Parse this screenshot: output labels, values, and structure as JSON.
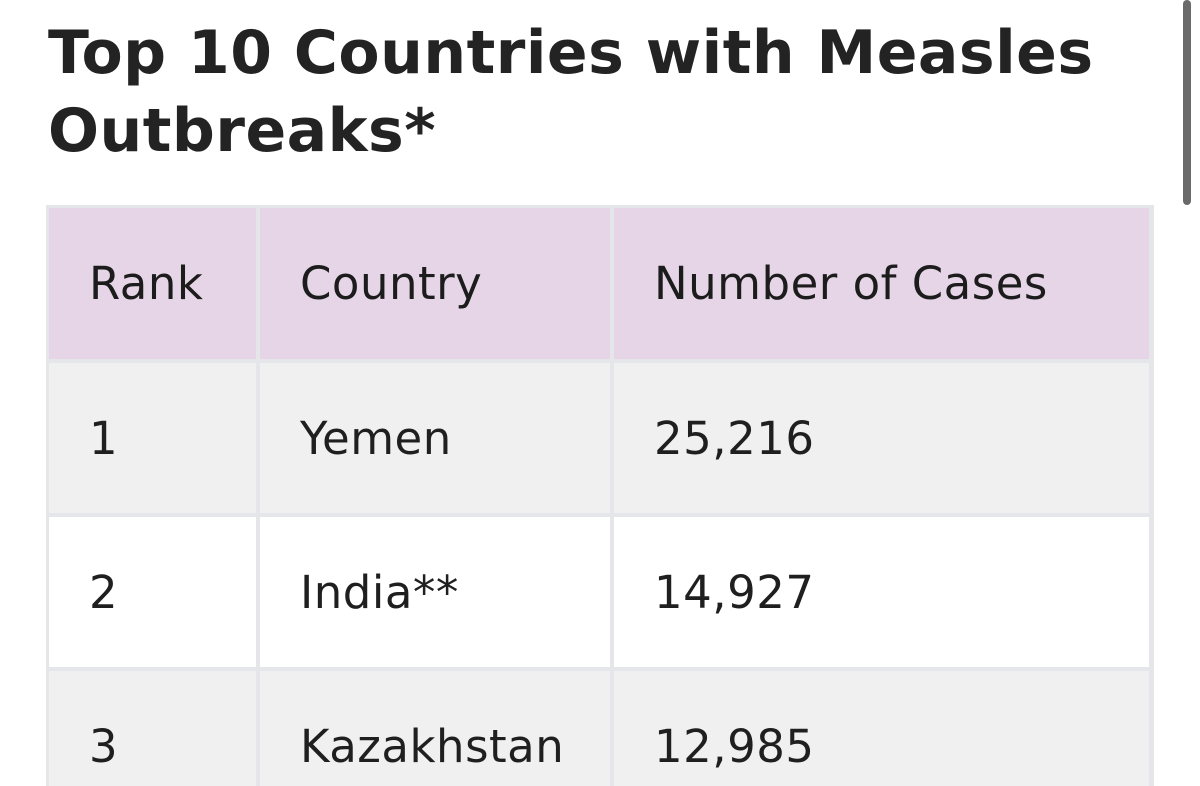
{
  "title": "Top 10 Countries with Measles Outbreaks*",
  "table": {
    "headers": [
      "Rank",
      "Country",
      "Number of Cases"
    ],
    "rows": [
      {
        "rank": "1",
        "country": "Yemen",
        "cases": "25,216"
      },
      {
        "rank": "2",
        "country": "India**",
        "cases": "14,927"
      },
      {
        "rank": "3",
        "country": "Kazakhstan",
        "cases": "12,985"
      }
    ]
  },
  "colors": {
    "header_bg": "#e6d5e7",
    "row_alt_bg": "#f0f0f0",
    "grid": "#e4e6ea"
  }
}
